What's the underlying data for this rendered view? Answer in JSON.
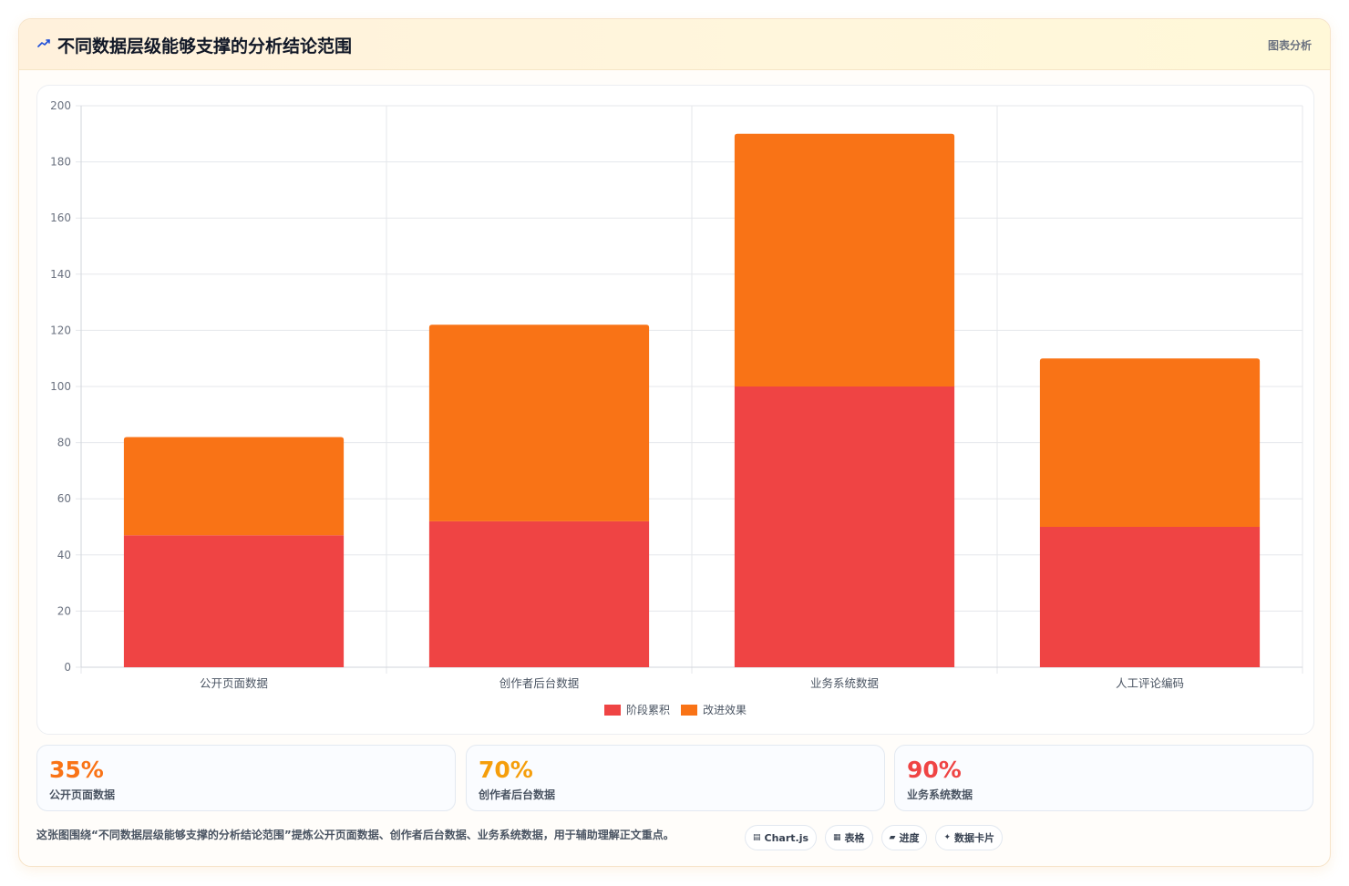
{
  "header": {
    "title": "不同数据层级能够支撑的分析结论范围",
    "tag": "图表分析",
    "icon": "chart-line-icon"
  },
  "colors": {
    "series_1": "#ef4444",
    "series_2": "#f97316",
    "stat_1": "#f97316",
    "stat_2": "#f59e0b",
    "stat_3": "#ef4444"
  },
  "chart_data": {
    "type": "bar",
    "stacked": true,
    "categories": [
      "公开页面数据",
      "创作者后台数据",
      "业务系统数据",
      "人工评论编码"
    ],
    "series": [
      {
        "name": "阶段累积",
        "values": [
          47,
          52,
          100,
          50
        ],
        "color": "#ef4444"
      },
      {
        "name": "改进效果",
        "values": [
          35,
          70,
          90,
          60
        ],
        "color": "#f97316"
      }
    ],
    "ylim": [
      0,
      200
    ],
    "yticks": [
      0,
      20,
      40,
      60,
      80,
      100,
      120,
      140,
      160,
      180,
      200
    ],
    "grid": true,
    "legend": "bottom"
  },
  "stats": [
    {
      "value": "35%",
      "label": "公开页面数据"
    },
    {
      "value": "70%",
      "label": "创作者后台数据"
    },
    {
      "value": "90%",
      "label": "业务系统数据"
    }
  ],
  "footer": {
    "caption": "这张图围绕“不同数据层级能够支撑的分析结论范围”提炼公开页面数据、创作者后台数据、业务系统数据，用于辅助理解正文重点。",
    "chips": [
      {
        "icon": "▤",
        "label": "Chart.js"
      },
      {
        "icon": "▦",
        "label": "表格"
      },
      {
        "icon": "▰",
        "label": "进度"
      },
      {
        "icon": "✦",
        "label": "数据卡片"
      }
    ]
  }
}
